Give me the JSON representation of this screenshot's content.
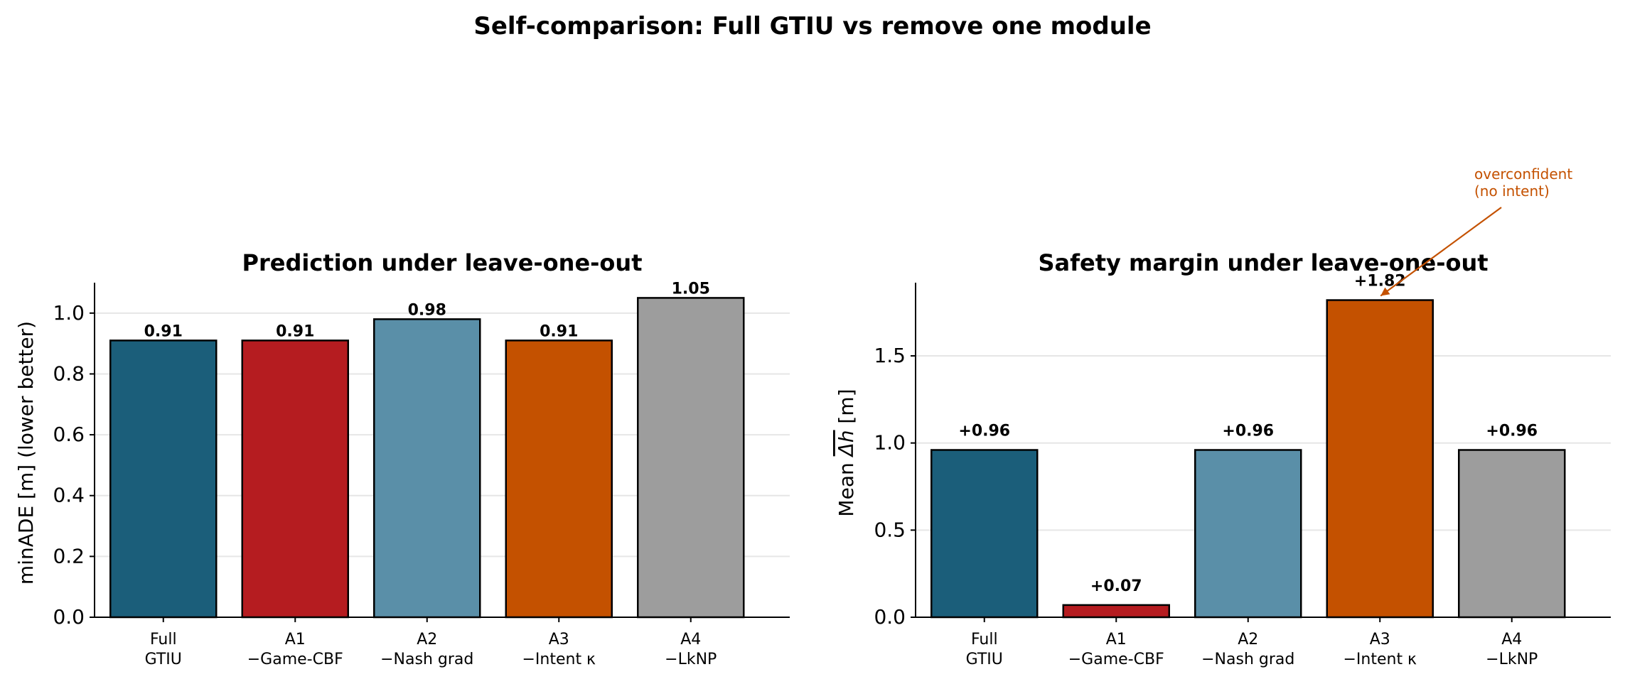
{
  "suptitle": "Self-comparison: Full GTIU vs remove one module",
  "colors": [
    "#1b5e7a",
    "#b51c20",
    "#5a8fa8",
    "#c45100",
    "#9d9d9d"
  ],
  "chart_data": [
    {
      "type": "bar",
      "title": "Prediction under leave-one-out",
      "ylabel": "minADE [m] (lower better)",
      "xlabel": "",
      "ylim": [
        0,
        1.1
      ],
      "yticks": [
        "0.0",
        "0.2",
        "0.4",
        "0.6",
        "0.8",
        "1.0"
      ],
      "yticks_values": [
        0,
        0.2,
        0.4,
        0.6,
        0.8,
        1.0
      ],
      "grid": "y",
      "categories": [
        [
          "Full",
          "GTIU"
        ],
        [
          "A1",
          "−Game-CBF"
        ],
        [
          "A2",
          "−Nash grad"
        ],
        [
          "A3",
          "−Intent κ"
        ],
        [
          "A4",
          "−LkNP"
        ]
      ],
      "values": [
        0.91,
        0.91,
        0.98,
        0.91,
        1.05
      ],
      "value_labels": [
        "0.91",
        "0.91",
        "0.98",
        "0.91",
        "1.05"
      ]
    },
    {
      "type": "bar",
      "title": "Safety margin under leave-one-out",
      "ylabel_prefix": "Mean ",
      "ylabel_symbol": "Δh",
      "ylabel_suffix": " [m]",
      "xlabel": "",
      "ylim": [
        0,
        1.92
      ],
      "yticks": [
        "0.0",
        "0.5",
        "1.0",
        "1.5"
      ],
      "yticks_values": [
        0,
        0.5,
        1.0,
        1.5
      ],
      "grid": "y",
      "categories": [
        [
          "Full",
          "GTIU"
        ],
        [
          "A1",
          "−Game-CBF"
        ],
        [
          "A2",
          "−Nash grad"
        ],
        [
          "A3",
          "−Intent κ"
        ],
        [
          "A4",
          "−LkNP"
        ]
      ],
      "values": [
        0.96,
        0.07,
        0.96,
        1.82,
        0.96
      ],
      "value_labels": [
        "+0.96",
        "+0.07",
        "+0.96",
        "+1.82",
        "+0.96"
      ],
      "annotation": {
        "text_lines": [
          "overconfident",
          "(no intent)"
        ],
        "target_bar": 3,
        "color": "#c45100"
      }
    }
  ]
}
